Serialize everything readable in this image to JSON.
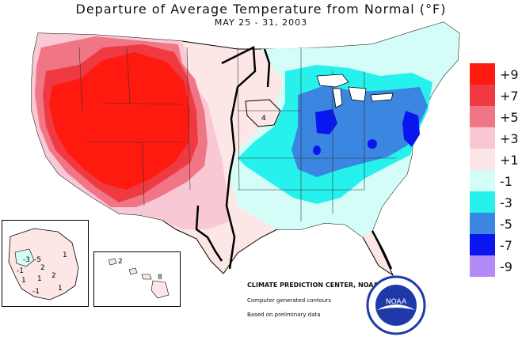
{
  "title": "Departure of Average Temperature from Normal (°F)",
  "subtitle": "MAY 25 - 31, 2003",
  "legend": [
    {
      "label": "+9",
      "color": "#ff1a10"
    },
    {
      "label": "+7",
      "color": "#ef3a42"
    },
    {
      "label": "+5",
      "color": "#f07585"
    },
    {
      "label": "+3",
      "color": "#f8c9d4"
    },
    {
      "label": "+1",
      "color": "#fde7e6"
    },
    {
      "label": "-1",
      "color": "#d4fdf7"
    },
    {
      "label": "-3",
      "color": "#27f1ec"
    },
    {
      "label": "-5",
      "color": "#3a86e0"
    },
    {
      "label": "-7",
      "color": "#0a16f0"
    },
    {
      "label": "-9",
      "color": "#b38af6"
    }
  ],
  "credit": "CLIMATE PREDICTION CENTER, NOAA",
  "note_contours": "Computer generated contours",
  "note_data": "Based on preliminary data",
  "alaska_labels": [
    "-3",
    "-5",
    "1",
    "-1",
    "2",
    "1",
    "1",
    "2",
    "-1",
    "1"
  ],
  "hawaii_labels": [
    "2",
    "8"
  ],
  "map_labels": [
    "4"
  ],
  "logo_text": "NOAA"
}
